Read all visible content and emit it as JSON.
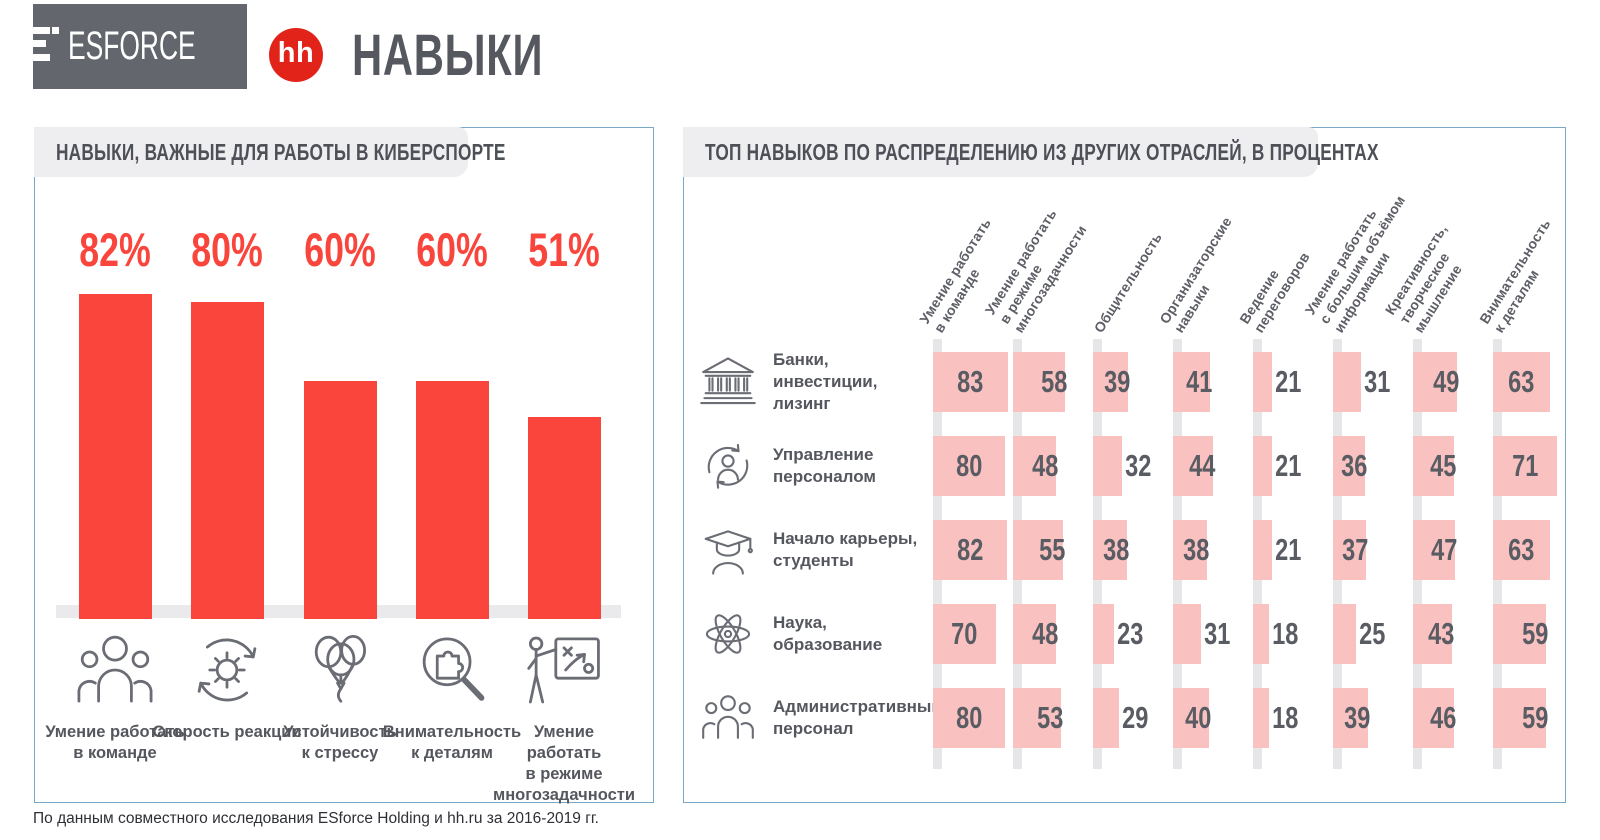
{
  "header": {
    "esforce_logo": "ESFORCE",
    "hh_logo": "hh",
    "title": "НАВЫКИ"
  },
  "footer": {
    "source": "По данным совместного исследования ESforce Holding и hh.ru за 2016-2019 гг."
  },
  "colors": {
    "accent_red": "#f9453c",
    "cell_pink": "#f9c2c1",
    "icon_gray": "#6b6d75",
    "panel_border_blue": "#7aa6c7",
    "bubble_gray": "#eeeef1",
    "logo_box_gray": "#63666d"
  },
  "left_panel": {
    "title": "НАВЫКИ, ВАЖНЫЕ ДЛЯ РАБОТЫ В КИБЕРСПОРТЕ",
    "bars": [
      {
        "value": 82,
        "display": "82%",
        "icon": "team-icon",
        "label_lines": [
          "Умение работать",
          "в команде"
        ]
      },
      {
        "value": 80,
        "display": "80%",
        "icon": "reaction-speed-icon",
        "label_lines": [
          "Скорость реакции"
        ]
      },
      {
        "value": 60,
        "display": "60%",
        "icon": "stress-resistance-icon",
        "label_lines": [
          "Устойчивость",
          "к стрессу"
        ]
      },
      {
        "value": 60,
        "display": "60%",
        "icon": "attention-to-detail-icon",
        "label_lines": [
          "Внимательность",
          "к деталям"
        ]
      },
      {
        "value": 51,
        "display": "51%",
        "icon": "multitasking-icon",
        "label_lines": [
          "Умение",
          "работать",
          "в режиме",
          "многозадачности"
        ]
      }
    ]
  },
  "right_panel": {
    "title": "ТОП НАВЫКОВ ПО РАСПРЕДЕЛЕНИЮ ИЗ ДРУГИХ ОТРАСЛЕЙ, В ПРОЦЕНТАХ",
    "columns": [
      {
        "lines": [
          "Умение работать",
          "в команде"
        ]
      },
      {
        "lines": [
          "Умение работать",
          "в режиме",
          "многозадачности"
        ]
      },
      {
        "lines": [
          "Общительность"
        ]
      },
      {
        "lines": [
          "Организаторские",
          "навыки"
        ]
      },
      {
        "lines": [
          "Ведение",
          "переговоров"
        ]
      },
      {
        "lines": [
          "Умение работать",
          "с большим объёмом",
          "информации"
        ]
      },
      {
        "lines": [
          "Креативность,",
          "творческое",
          "мышление"
        ]
      },
      {
        "lines": [
          "Внимательность",
          "к деталям"
        ]
      }
    ],
    "rows": [
      {
        "icon": "bank-icon",
        "label_lines": [
          "Банки,",
          "инвестиции,",
          "лизинг"
        ],
        "values": [
          83,
          58,
          39,
          41,
          21,
          31,
          49,
          63
        ]
      },
      {
        "icon": "hr-icon",
        "label_lines": [
          "Управление",
          "персоналом"
        ],
        "values": [
          80,
          48,
          32,
          44,
          21,
          36,
          45,
          71
        ]
      },
      {
        "icon": "student-icon",
        "label_lines": [
          "Начало карьеры,",
          "студенты"
        ],
        "values": [
          82,
          55,
          38,
          38,
          21,
          37,
          47,
          63
        ]
      },
      {
        "icon": "science-icon",
        "label_lines": [
          "Наука,",
          "образование"
        ],
        "values": [
          70,
          48,
          23,
          31,
          18,
          25,
          43,
          59
        ]
      },
      {
        "icon": "admin-icon",
        "label_lines": [
          "Административный",
          "персонал"
        ],
        "values": [
          80,
          53,
          29,
          40,
          18,
          39,
          46,
          59
        ]
      }
    ]
  },
  "chart_data": [
    {
      "type": "bar",
      "title": "НАВЫКИ, ВАЖНЫЕ ДЛЯ РАБОТЫ В КИБЕРСПОРТЕ",
      "categories": [
        "Умение работать в команде",
        "Скорость реакции",
        "Устойчивость к стрессу",
        "Внимательность к деталям",
        "Умение работать в режиме многозадачности"
      ],
      "values": [
        82,
        80,
        60,
        60,
        51
      ],
      "unit": "%",
      "ylim": [
        0,
        100
      ],
      "grid": false,
      "bar_color": "#f9453c"
    },
    {
      "type": "heatmap",
      "title": "ТОП НАВЫКОВ ПО РАСПРЕДЕЛЕНИЮ ИЗ ДРУГИХ ОТРАСЛЕЙ, В ПРОЦЕНТАХ",
      "columns": [
        "Умение работать в команде",
        "Умение работать в режиме многозадачности",
        "Общительность",
        "Организаторские навыки",
        "Ведение переговоров",
        "Умение работать с большим объёмом информации",
        "Креативность, творческое мышление",
        "Внимательность к деталям"
      ],
      "rows": [
        "Банки, инвестиции, лизинг",
        "Управление персоналом",
        "Начало карьеры, студенты",
        "Наука, образование",
        "Административный персонал"
      ],
      "values": [
        [
          83,
          58,
          39,
          41,
          21,
          31,
          49,
          63
        ],
        [
          80,
          48,
          32,
          44,
          21,
          36,
          45,
          71
        ],
        [
          82,
          55,
          38,
          38,
          21,
          37,
          47,
          63
        ],
        [
          70,
          48,
          23,
          31,
          18,
          25,
          43,
          59
        ],
        [
          80,
          53,
          29,
          40,
          18,
          39,
          46,
          59
        ]
      ],
      "unit": "%",
      "cell_color": "#f9c2c1"
    }
  ]
}
